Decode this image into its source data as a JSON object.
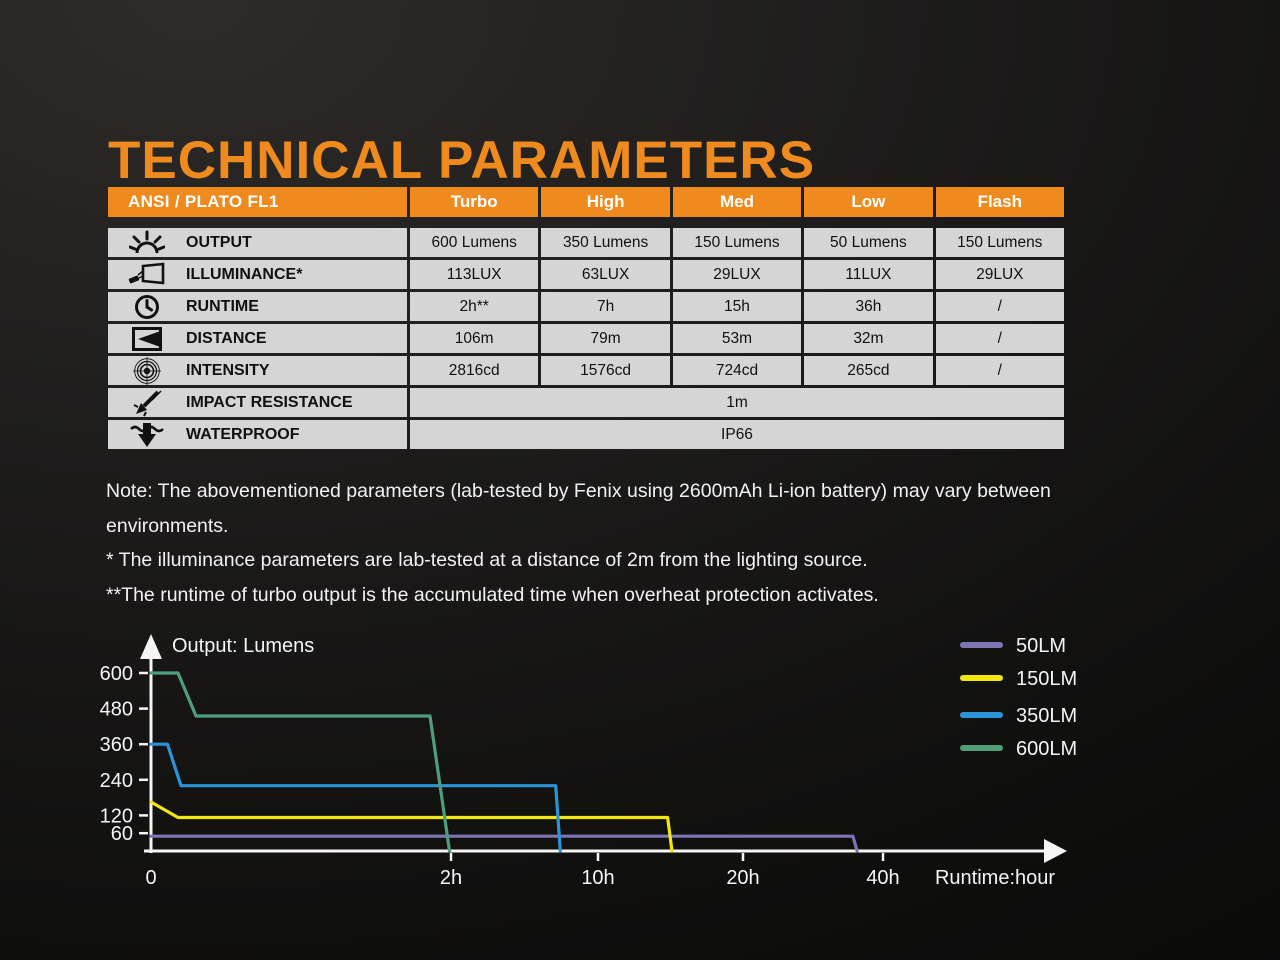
{
  "title": "TECHNICAL PARAMETERS",
  "colors": {
    "accent_orange": "#EF8A1E",
    "table_cell_gray": "#D5D5D5",
    "table_text": "#101010",
    "axis_white": "#F5F5F5",
    "note_text": "#F2F2F2"
  },
  "table": {
    "header": {
      "label": "ANSI / PLATO FL1",
      "modes": [
        "Turbo",
        "High",
        "Med",
        "Low",
        "Flash"
      ]
    },
    "rows": [
      {
        "icon": "output-sun-icon",
        "label": "OUTPUT",
        "values": [
          "600 Lumens",
          "350 Lumens",
          "150 Lumens",
          "50 Lumens",
          "150 Lumens"
        ]
      },
      {
        "icon": "illuminance-icon",
        "label": "ILLUMINANCE*",
        "values": [
          "113LUX",
          "63LUX",
          "29LUX",
          "11LUX",
          "29LUX"
        ]
      },
      {
        "icon": "runtime-clock-icon",
        "label": "RUNTIME",
        "values": [
          "2h**",
          "7h",
          "15h",
          "36h",
          "/"
        ]
      },
      {
        "icon": "distance-beam-icon",
        "label": "DISTANCE",
        "values": [
          "106m",
          "79m",
          "53m",
          "32m",
          "/"
        ]
      },
      {
        "icon": "intensity-target-icon",
        "label": "INTENSITY",
        "values": [
          "2816cd",
          "1576cd",
          "724cd",
          "265cd",
          "/"
        ]
      },
      {
        "icon": "impact-resistance-icon",
        "label": "IMPACT RESISTANCE",
        "values": [
          "1m"
        ],
        "span": true
      },
      {
        "icon": "waterproof-icon",
        "label": "WATERPROOF",
        "values": [
          "IP66"
        ],
        "span": true
      }
    ]
  },
  "notes": {
    "line1": "Note: The abovementioned parameters (lab-tested by Fenix using 2600mAh Li-ion battery) may vary between environments.",
    "line2": "* The illuminance parameters are lab-tested at a distance of 2m from the lighting source.",
    "line3": "**The runtime of turbo output is the accumulated time when overheat protection activates."
  },
  "chart_data": {
    "type": "line",
    "title": "Output: Lumens",
    "xlabel": "Runtime:hour",
    "x_ticks": [
      {
        "label": "0",
        "hour": 0
      },
      {
        "label": "2h",
        "hour": 2
      },
      {
        "label": "10h",
        "hour": 10
      },
      {
        "label": "20h",
        "hour": 20
      },
      {
        "label": "40h",
        "hour": 40
      }
    ],
    "x_axis_scale": "piecewise non-linear (equal width per tick segment)",
    "y_ticks": [
      600,
      480,
      360,
      240,
      120,
      60
    ],
    "ylim": [
      0,
      640
    ],
    "grid": false,
    "legend_position": "top-right",
    "series": [
      {
        "name": "50LM",
        "color": "#7D76B4",
        "points": [
          [
            0,
            50
          ],
          [
            35.7,
            50
          ],
          [
            36.3,
            0
          ]
        ]
      },
      {
        "name": "150LM",
        "color": "#F2E60E",
        "points": [
          [
            0,
            165
          ],
          [
            0.18,
            113
          ],
          [
            14.8,
            113
          ],
          [
            15.1,
            0
          ]
        ]
      },
      {
        "name": "350LM",
        "color": "#2B94D8",
        "points": [
          [
            0,
            360
          ],
          [
            0.11,
            360
          ],
          [
            0.2,
            220
          ],
          [
            7.7,
            220
          ],
          [
            7.95,
            0
          ]
        ]
      },
      {
        "name": "600LM",
        "color": "#4F9E79",
        "points": [
          [
            0,
            600
          ],
          [
            0.18,
            600
          ],
          [
            0.3,
            455
          ],
          [
            1.86,
            455
          ],
          [
            1.99,
            0
          ]
        ]
      }
    ]
  }
}
